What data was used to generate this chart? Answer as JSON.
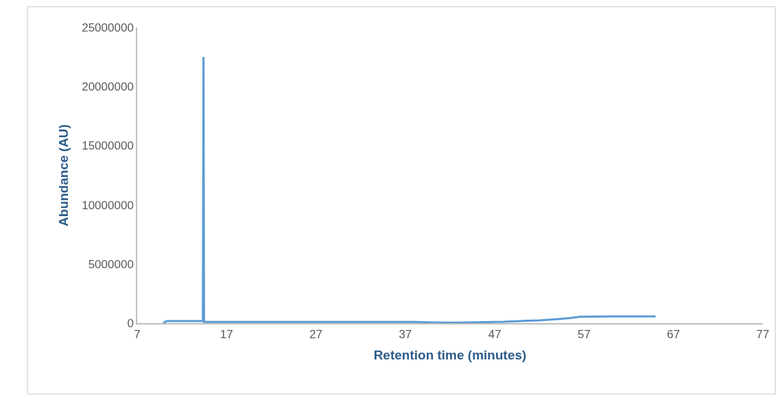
{
  "chart_data": {
    "type": "line",
    "xlabel": "Retention time (minutes)",
    "ylabel": "Abundance (AU)",
    "x": [
      9.9,
      10.3,
      14.35,
      14.42,
      14.48,
      20,
      30,
      38,
      40,
      41.5,
      43,
      46,
      48,
      50,
      52,
      54,
      55.5,
      56.5,
      60,
      63,
      65
    ],
    "series": [
      {
        "color": "#5b9bd5",
        "values": [
          0,
          170000,
          170000,
          22500000,
          100000,
          100000,
          100000,
          100000,
          60000,
          40000,
          40000,
          90000,
          110000,
          180000,
          230000,
          330000,
          430000,
          540000,
          560000,
          560000,
          570000
        ]
      }
    ],
    "xlim": [
      7,
      77
    ],
    "xticks": [
      7,
      17,
      27,
      37,
      47,
      57,
      67,
      77
    ],
    "ylim": [
      0,
      25000000
    ],
    "yticks": [
      0,
      5000000,
      10000000,
      15000000,
      20000000,
      25000000
    ],
    "marker": "none",
    "line_style": "solid"
  }
}
